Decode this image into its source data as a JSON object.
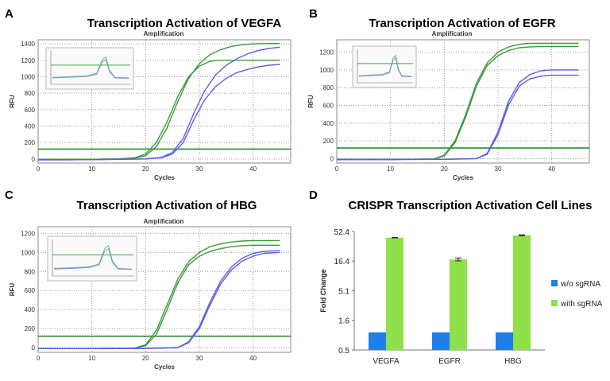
{
  "panels": {
    "A": {
      "letter": "A",
      "title": "Transcription Activation of VEGFA"
    },
    "B": {
      "letter": "B",
      "title": "Transcription Activation of EGFR"
    },
    "C": {
      "letter": "C",
      "title": "Transcription Activation of HBG"
    },
    "D": {
      "letter": "D",
      "title": "CRISPR Transcription Activation Cell Lines"
    }
  },
  "colors": {
    "green": "#3a9b3a",
    "blue": "#5a5ee6",
    "bar_blue": "#1f7fe6",
    "bar_green": "#8fe04a",
    "threshold": "#2e8b2e"
  },
  "chart_data": [
    {
      "type": "line",
      "title": "Amplification",
      "xlabel": "Cycles",
      "ylabel": "RFU",
      "xlim": [
        0,
        47
      ],
      "ylim": [
        -50,
        1450
      ],
      "xticks": [
        0,
        10,
        20,
        30,
        40
      ],
      "yticks": [
        0,
        200,
        400,
        600,
        800,
        1000,
        1200,
        1400
      ],
      "threshold": 120,
      "grid": true,
      "inset": true,
      "series": [
        {
          "color": "green",
          "x": [
            0,
            5,
            10,
            15,
            18,
            20,
            22,
            24,
            26,
            28,
            30,
            32,
            34,
            36,
            38,
            40,
            42,
            45
          ],
          "y": [
            -5,
            -5,
            -5,
            0,
            15,
            60,
            200,
            450,
            760,
            1000,
            1130,
            1190,
            1200,
            1200,
            1200,
            1200,
            1200,
            1200
          ]
        },
        {
          "color": "green",
          "x": [
            0,
            5,
            10,
            15,
            18,
            20,
            22,
            24,
            26,
            28,
            30,
            32,
            34,
            36,
            38,
            40,
            42,
            45
          ],
          "y": [
            -5,
            -5,
            -5,
            0,
            10,
            40,
            150,
            380,
            700,
            980,
            1160,
            1270,
            1330,
            1370,
            1390,
            1400,
            1405,
            1405
          ]
        },
        {
          "color": "blue",
          "x": [
            0,
            5,
            10,
            15,
            20,
            23,
            25,
            27,
            29,
            31,
            33,
            35,
            37,
            39,
            41,
            43,
            45
          ],
          "y": [
            -10,
            -10,
            -8,
            -5,
            0,
            20,
            80,
            250,
            560,
            830,
            1020,
            1140,
            1220,
            1280,
            1320,
            1345,
            1360
          ]
        },
        {
          "color": "blue",
          "x": [
            0,
            5,
            10,
            15,
            20,
            23,
            25,
            27,
            29,
            31,
            33,
            35,
            37,
            39,
            41,
            43,
            45
          ],
          "y": [
            -10,
            -10,
            -8,
            -5,
            0,
            15,
            60,
            200,
            480,
            720,
            880,
            980,
            1050,
            1090,
            1120,
            1140,
            1150
          ]
        }
      ]
    },
    {
      "type": "line",
      "title": "Amplification",
      "xlabel": "Cycles",
      "ylabel": "RFU",
      "xlim": [
        0,
        47
      ],
      "ylim": [
        -50,
        1340
      ],
      "xticks": [
        0,
        10,
        20,
        30,
        40
      ],
      "yticks": [
        0,
        200,
        400,
        600,
        800,
        1000,
        1200
      ],
      "threshold": 120,
      "grid": true,
      "inset": true,
      "series": [
        {
          "color": "green",
          "x": [
            0,
            10,
            18,
            20,
            22,
            24,
            26,
            28,
            30,
            32,
            34,
            36,
            38,
            40,
            42,
            45
          ],
          "y": [
            -10,
            -10,
            -5,
            40,
            200,
            500,
            850,
            1080,
            1200,
            1260,
            1290,
            1300,
            1300,
            1300,
            1300,
            1300
          ]
        },
        {
          "color": "green",
          "x": [
            0,
            10,
            18,
            20,
            22,
            24,
            26,
            28,
            30,
            32,
            34,
            36,
            38,
            40,
            42,
            45
          ],
          "y": [
            -10,
            -10,
            -5,
            30,
            180,
            470,
            820,
            1050,
            1160,
            1220,
            1250,
            1260,
            1265,
            1265,
            1265,
            1265
          ]
        },
        {
          "color": "blue",
          "x": [
            0,
            10,
            20,
            26,
            28,
            30,
            32,
            34,
            36,
            38,
            40,
            42,
            45
          ],
          "y": [
            -10,
            -10,
            -8,
            0,
            60,
            300,
            650,
            860,
            950,
            990,
            1000,
            1000,
            1000
          ]
        },
        {
          "color": "blue",
          "x": [
            0,
            10,
            20,
            26,
            28,
            30,
            32,
            34,
            36,
            38,
            40,
            42,
            45
          ],
          "y": [
            -10,
            -10,
            -8,
            0,
            50,
            270,
            610,
            820,
            900,
            930,
            940,
            940,
            940
          ]
        }
      ]
    },
    {
      "type": "line",
      "title": "Amplification",
      "xlabel": "Cycles",
      "ylabel": "RFU",
      "xlim": [
        0,
        47
      ],
      "ylim": [
        -50,
        1270
      ],
      "xticks": [
        0,
        10,
        20,
        30,
        40
      ],
      "yticks": [
        0,
        200,
        400,
        600,
        800,
        1000,
        1200
      ],
      "threshold": 120,
      "grid": true,
      "inset": true,
      "series": [
        {
          "color": "green",
          "x": [
            0,
            10,
            18,
            20,
            22,
            24,
            26,
            28,
            30,
            32,
            34,
            36,
            38,
            40,
            42,
            45
          ],
          "y": [
            -10,
            -10,
            -5,
            30,
            180,
            450,
            720,
            900,
            1000,
            1060,
            1090,
            1110,
            1120,
            1125,
            1125,
            1125
          ]
        },
        {
          "color": "green",
          "x": [
            0,
            10,
            18,
            20,
            22,
            24,
            26,
            28,
            30,
            32,
            34,
            36,
            38,
            40,
            42,
            45
          ],
          "y": [
            -10,
            -10,
            -5,
            20,
            140,
            400,
            680,
            870,
            960,
            1010,
            1040,
            1060,
            1070,
            1075,
            1075,
            1075
          ]
        },
        {
          "color": "blue",
          "x": [
            0,
            10,
            20,
            26,
            28,
            30,
            32,
            34,
            36,
            38,
            40,
            42,
            45
          ],
          "y": [
            -10,
            -10,
            -8,
            0,
            60,
            220,
            480,
            700,
            850,
            940,
            990,
            1010,
            1020
          ]
        },
        {
          "color": "blue",
          "x": [
            0,
            10,
            20,
            26,
            28,
            30,
            32,
            34,
            36,
            38,
            40,
            42,
            45
          ],
          "y": [
            -10,
            -10,
            -8,
            0,
            50,
            200,
            450,
            670,
            820,
            910,
            960,
            990,
            1000
          ]
        }
      ]
    },
    {
      "type": "bar",
      "categories": [
        "VEGFA",
        "EGFR",
        "HBG"
      ],
      "ylabel": "Fold Change",
      "yscale": "log",
      "yticks": [
        "0.5",
        "1.6",
        "5.1",
        "16.4",
        "52.4"
      ],
      "ylim": [
        0.5,
        52.4
      ],
      "legend": "right",
      "series": [
        {
          "name": "w/o sgRNA",
          "color": "bar_blue",
          "values": [
            1.0,
            1.0,
            1.0
          ]
        },
        {
          "name": "with sgRNA",
          "color": "bar_green",
          "values": [
            41,
            17.5,
            45
          ],
          "errors": [
            0.3,
            1.0,
            0.9
          ]
        }
      ]
    }
  ]
}
